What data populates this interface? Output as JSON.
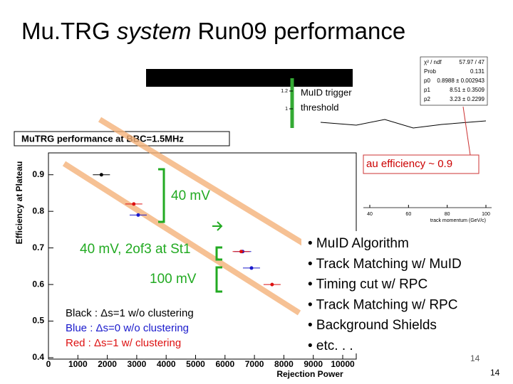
{
  "slide": {
    "title_parts": [
      "Mu.TRG ",
      "system",
      " Run09 performance"
    ],
    "page_number": "14",
    "page_number_inner": "14",
    "annotations": {
      "muid_trigger": [
        "MuID trigger",
        "threshold"
      ],
      "plateau": "au efficiency ~ 0.9",
      "mv40": "40 mV",
      "mv40_2of3": "40 mV, 2of3 at St1",
      "mv100": "100 mV"
    },
    "bullets": [
      "• MuID Algorithm",
      "• Track Matching w/ MuID",
      "• Timing cut w/ RPC",
      "• Track Matching w/ RPC",
      "• Background Shields",
      "• etc. . ."
    ]
  },
  "background_plot": {
    "stats": [
      [
        "χ² / ndf",
        "57.97 / 47"
      ],
      [
        "Prob",
        "0.131"
      ],
      [
        "p0",
        "0.8988 ± 0.002943"
      ],
      [
        "p1",
        "8.51 ± 0.3509"
      ],
      [
        "p2",
        "3.23 ± 0.2299"
      ]
    ],
    "xticks": [
      40,
      60,
      80,
      100
    ],
    "xlabel": "track momentum (GeV/c)",
    "yticks": [
      1,
      1.2
    ]
  },
  "chart_data": {
    "type": "scatter",
    "title": "MuTRG performance at BBC=1.5MHz",
    "xlabel": "Rejection Power",
    "ylabel": "Efficiency at Plateau",
    "xlim": [
      0,
      10000
    ],
    "ylim": [
      0.4,
      0.95
    ],
    "xticks": [
      0,
      1000,
      2000,
      3000,
      4000,
      5000,
      6000,
      7000,
      8000,
      9000,
      10000
    ],
    "yticks": [
      0.4,
      0.5,
      0.6,
      0.7,
      0.8,
      0.9
    ],
    "series": [
      {
        "name": "Black : Δs=1 w/o clustering",
        "color": "#000000",
        "x": [
          1800
        ],
        "values": [
          0.9
        ]
      },
      {
        "name": "Blue : Δs=0 w/o clustering",
        "color": "#1a1acc",
        "x": [
          3050,
          6600,
          6900
        ],
        "values": [
          0.79,
          0.69,
          0.645
        ]
      },
      {
        "name": "Red : Δs=1 w/ clustering",
        "color": "#dd1111",
        "x": [
          2900,
          6550,
          7600
        ],
        "values": [
          0.82,
          0.69,
          0.6
        ]
      }
    ]
  }
}
